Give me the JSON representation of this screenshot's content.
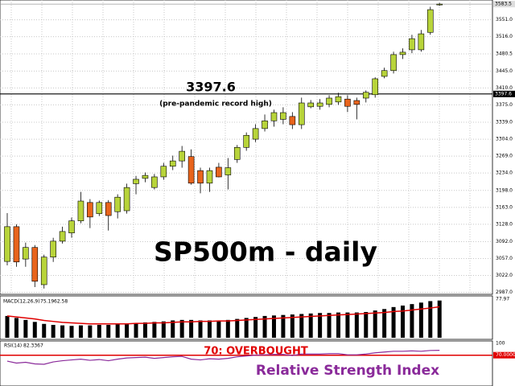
{
  "chart_data": [
    {
      "type": "candlestick",
      "title": "SP500m - daily",
      "open": [
        3051,
        3123,
        3056,
        3080,
        3003,
        3060,
        3093,
        3110,
        3135,
        3173,
        3150,
        3173,
        3154,
        3156,
        3212,
        3223,
        3204,
        3226,
        3248,
        3259,
        3268,
        3239,
        3213,
        3246,
        3230,
        3262,
        3287,
        3304,
        3326,
        3342,
        3345,
        3351,
        3334,
        3371,
        3372,
        3376,
        3381,
        3387,
        3384,
        3389,
        3396,
        3434,
        3446,
        3479,
        3489,
        3489,
        3525,
        3583
      ],
      "high": [
        3151,
        3128,
        3090,
        3085,
        3065,
        3100,
        3123,
        3142,
        3195,
        3180,
        3177,
        3178,
        3190,
        3212,
        3228,
        3235,
        3232,
        3255,
        3270,
        3290,
        3283,
        3245,
        3245,
        3255,
        3265,
        3292,
        3318,
        3335,
        3355,
        3365,
        3370,
        3360,
        3390,
        3385,
        3387,
        3395,
        3400,
        3395,
        3390,
        3405,
        3432,
        3452,
        3485,
        3492,
        3520,
        3530,
        3578,
        3586
      ],
      "low": [
        3043,
        3040,
        3040,
        2998,
        2995,
        3050,
        3088,
        3100,
        3130,
        3120,
        3145,
        3115,
        3140,
        3150,
        3190,
        3215,
        3200,
        3220,
        3240,
        3245,
        3210,
        3192,
        3195,
        3225,
        3200,
        3255,
        3280,
        3298,
        3320,
        3330,
        3335,
        3325,
        3325,
        3368,
        3365,
        3370,
        3375,
        3360,
        3345,
        3380,
        3390,
        3430,
        3440,
        3470,
        3482,
        3485,
        3520,
        3580
      ],
      "close": [
        3123,
        3050,
        3080,
        3010,
        3060,
        3093,
        3113,
        3135,
        3176,
        3143,
        3173,
        3146,
        3184,
        3204,
        3221,
        3229,
        3226,
        3248,
        3259,
        3279,
        3213,
        3213,
        3239,
        3226,
        3245,
        3287,
        3312,
        3326,
        3342,
        3359,
        3359,
        3334,
        3379,
        3379,
        3379,
        3389,
        3392,
        3372,
        3376,
        3401,
        3429,
        3446,
        3479,
        3484,
        3512,
        3522,
        3572,
        3583.5
      ],
      "up_color": "#b8d43a",
      "down_color": "#e8641c",
      "hline": 3397.6,
      "hline_note": "(pre-pandemic record high)",
      "last_price": 3583.5,
      "ylim": [
        2983,
        3592
      ],
      "yticks": [
        {
          "value": 3551,
          "label": "3551.0"
        },
        {
          "value": 3516,
          "label": "3516.0"
        },
        3480.5,
        {
          "value": 3445,
          "label": "3445.0"
        },
        {
          "value": 3410,
          "label": "3410.0"
        },
        {
          "value": 3375,
          "label": "3375.0"
        },
        {
          "value": 3339,
          "label": "3339.0"
        },
        {
          "value": 3304,
          "label": "3304.0"
        },
        {
          "value": 3269,
          "label": "3269.0"
        },
        {
          "value": 3234,
          "label": "3234.0"
        },
        {
          "value": 3198,
          "label": "3198.0"
        },
        {
          "value": 3163,
          "label": "3163.0"
        },
        {
          "value": 3128,
          "label": "3128.0"
        },
        {
          "value": 3092,
          "label": "3092.0"
        },
        {
          "value": 3057,
          "label": "3057.0"
        },
        {
          "value": 3022,
          "label": "3022.0"
        },
        {
          "value": 2987,
          "label": "2987.0"
        }
      ],
      "grid": true
    },
    {
      "type": "macd",
      "title": "MACD(12,26,9)",
      "series": [
        {
          "values": [
            44,
            40,
            36,
            32,
            28,
            26,
            25,
            24,
            25,
            25,
            26,
            26,
            27,
            28,
            30,
            31,
            32,
            33,
            35,
            36,
            36,
            35,
            35,
            35,
            36,
            38,
            40,
            42,
            44,
            45,
            46,
            47,
            48,
            49,
            50,
            50,
            51,
            51,
            51,
            52,
            55,
            58,
            62,
            65,
            68,
            71,
            74,
            75.19
          ],
          "color": "#000000"
        },
        {
          "values": [
            44,
            42,
            40,
            38,
            35,
            33,
            31,
            30,
            29,
            28,
            28,
            28,
            28,
            28,
            29,
            29,
            30,
            30,
            31,
            32,
            32,
            33,
            33,
            34,
            34,
            35,
            36,
            37,
            38,
            39,
            40,
            41,
            42,
            43,
            44,
            45,
            46,
            47,
            48,
            49,
            50,
            51,
            53,
            54,
            56,
            58,
            60,
            62.58
          ],
          "color": "#e00000"
        }
      ],
      "ylim": [
        0,
        77.97
      ],
      "yticks": [
        77.97
      ]
    },
    {
      "type": "rsi",
      "title": "RSI(14)",
      "values": [
        55,
        50,
        52,
        48,
        47,
        53,
        56,
        58,
        60,
        57,
        59,
        56,
        60,
        63,
        64,
        65,
        62,
        64,
        66,
        67,
        60,
        58,
        61,
        60,
        62,
        66,
        68,
        70,
        71,
        72,
        72,
        69,
        73,
        73,
        73,
        74,
        74,
        71,
        71,
        73,
        76,
        78,
        80,
        80,
        81,
        80,
        82,
        82.3367
      ],
      "color": "#8a2a9a",
      "level": 70,
      "level_label": "70: OVERBOUGHT",
      "level_color": "#e00000",
      "annotation": "Relative Strength Index",
      "ylim": [
        0,
        100
      ],
      "yticks": [
        100,
        {
          "value": 70,
          "label": "70.0000"
        }
      ]
    }
  ]
}
